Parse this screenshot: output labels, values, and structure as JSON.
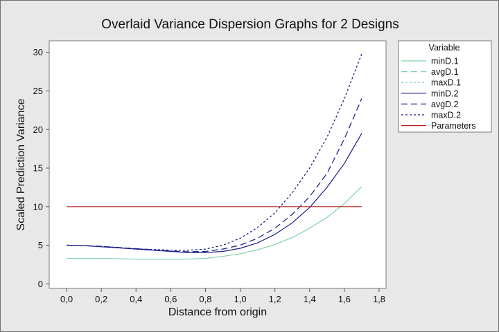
{
  "chart_data": {
    "type": "line",
    "title": "Overlaid Variance Dispersion Graphs for 2 Designs",
    "xlabel": "Distance from origin",
    "ylabel": "Scaled Prediction Variance",
    "xlim": [
      -0.1,
      1.84
    ],
    "ylim": [
      -0.6,
      31.5
    ],
    "x_ticks": [
      0.0,
      0.2,
      0.4,
      0.6,
      0.8,
      1.0,
      1.2,
      1.4,
      1.6,
      1.8
    ],
    "x_tick_labels": [
      "0,0",
      "0,2",
      "0,4",
      "0,6",
      "0,8",
      "1,0",
      "1,2",
      "1,4",
      "1,6",
      "1,8"
    ],
    "y_ticks": [
      0,
      5,
      10,
      15,
      20,
      25,
      30
    ],
    "y_tick_labels": [
      "0",
      "5",
      "10",
      "15",
      "20",
      "25",
      "30"
    ],
    "grid": false,
    "legend_title": "Variable",
    "legend_placement": "right",
    "x": [
      0.0,
      0.1,
      0.2,
      0.3,
      0.4,
      0.5,
      0.6,
      0.7,
      0.8,
      0.9,
      1.0,
      1.1,
      1.2,
      1.3,
      1.4,
      1.5,
      1.6,
      1.7
    ],
    "series": [
      {
        "name": "minD.1",
        "color": "#7ed3a8",
        "dash": "solid",
        "values": [
          3.3,
          3.3,
          3.3,
          3.25,
          3.2,
          3.2,
          3.2,
          3.2,
          3.3,
          3.55,
          3.9,
          4.4,
          5.1,
          6.0,
          7.2,
          8.6,
          10.4,
          12.6
        ]
      },
      {
        "name": "avgD.1",
        "color": "#7ed3a8",
        "dash": "long",
        "values": [
          5.0,
          4.95,
          4.85,
          4.7,
          4.55,
          4.4,
          4.25,
          4.15,
          4.2,
          4.5,
          5.0,
          5.9,
          7.2,
          9.0,
          11.3,
          14.3,
          18.8,
          24.0
        ]
      },
      {
        "name": "maxD.1",
        "color": "#7ed3a8",
        "dash": "short",
        "values": [
          5.0,
          4.95,
          4.85,
          4.7,
          4.55,
          4.45,
          4.35,
          4.35,
          4.5,
          5.0,
          5.9,
          7.3,
          9.2,
          11.8,
          15.0,
          19.0,
          24.0,
          29.8
        ]
      },
      {
        "name": "minD.2",
        "color": "#1a1a8c",
        "dash": "solid",
        "values": [
          5.0,
          4.95,
          4.8,
          4.65,
          4.5,
          4.35,
          4.2,
          4.05,
          4.05,
          4.2,
          4.6,
          5.3,
          6.4,
          7.9,
          9.9,
          12.5,
          15.6,
          19.5
        ]
      },
      {
        "name": "avgD.2",
        "color": "#1a1a8c",
        "dash": "long",
        "values": [
          5.0,
          4.95,
          4.85,
          4.7,
          4.55,
          4.4,
          4.25,
          4.15,
          4.2,
          4.5,
          5.0,
          5.9,
          7.2,
          9.0,
          11.3,
          14.3,
          18.8,
          24.0
        ]
      },
      {
        "name": "maxD.2",
        "color": "#1a1a8c",
        "dash": "short",
        "values": [
          5.0,
          4.95,
          4.85,
          4.7,
          4.55,
          4.45,
          4.35,
          4.35,
          4.5,
          5.0,
          5.9,
          7.3,
          9.2,
          11.8,
          15.0,
          19.0,
          24.0,
          29.8
        ]
      },
      {
        "name": "Parameters",
        "color": "#b22222",
        "dash": "solid",
        "values": [
          10,
          10,
          10,
          10,
          10,
          10,
          10,
          10,
          10,
          10,
          10,
          10,
          10,
          10,
          10,
          10,
          10,
          10
        ]
      }
    ]
  }
}
